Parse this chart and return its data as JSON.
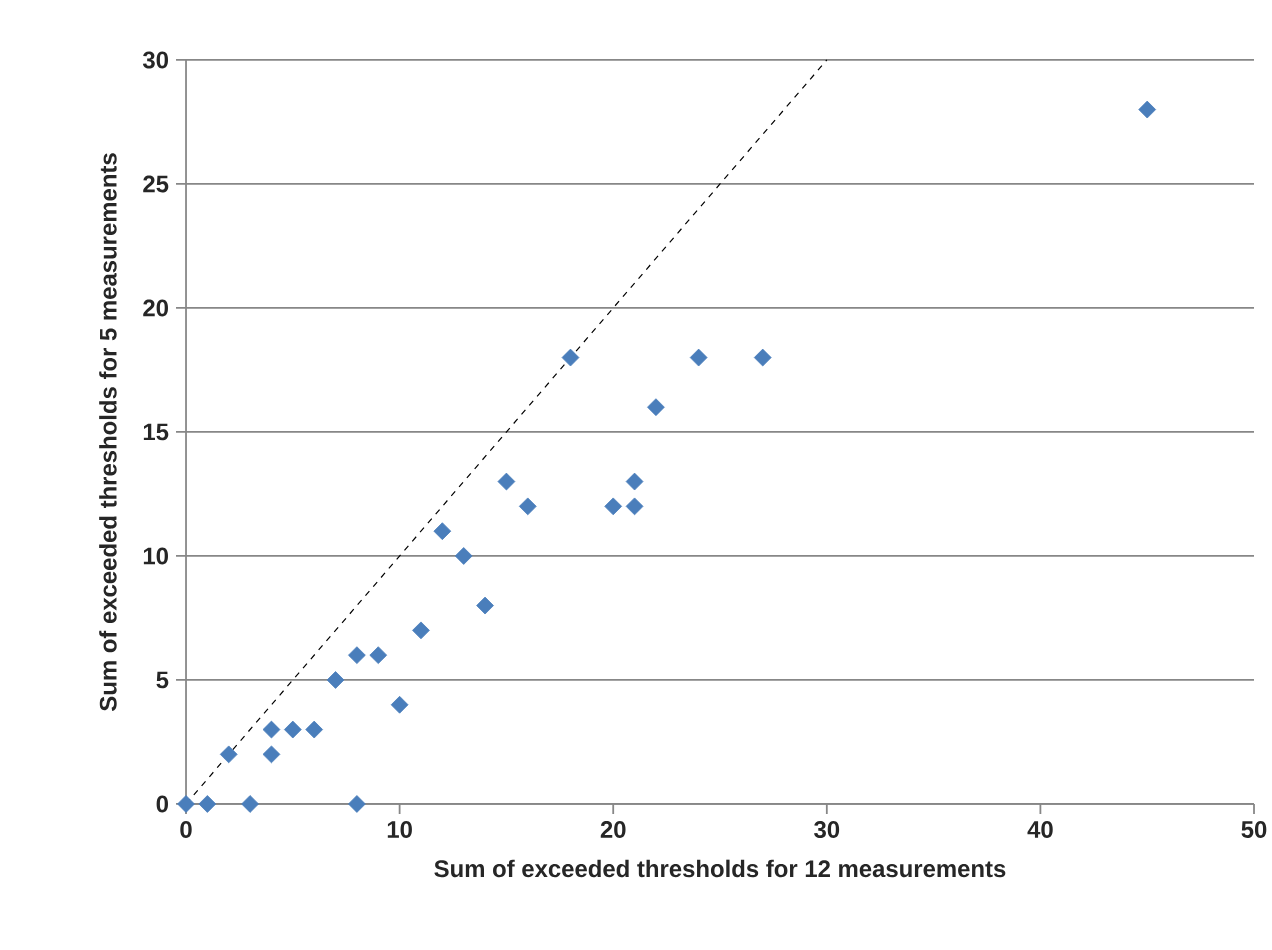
{
  "chart_data": {
    "type": "scatter",
    "xlabel": "Sum of exceeded thresholds for 12 measurements",
    "ylabel": "Sum of exceeded thresholds for 5 measurements",
    "xlim": [
      0,
      50
    ],
    "ylim": [
      0,
      30
    ],
    "xticks": [
      0,
      10,
      20,
      30,
      40,
      50
    ],
    "yticks": [
      0,
      5,
      10,
      15,
      20,
      25,
      30
    ],
    "grid": "y",
    "series": [
      {
        "marker": "diamond",
        "color": "#4a7ebb",
        "x": [
          0,
          1,
          2,
          3,
          4,
          4,
          5,
          6,
          7,
          8,
          8,
          9,
          10,
          11,
          12,
          13,
          14,
          15,
          16,
          18,
          20,
          21,
          21,
          22,
          24,
          27,
          45
        ],
        "values": [
          0,
          0,
          2,
          0,
          3,
          2,
          3,
          3,
          5,
          6,
          0,
          6,
          4,
          7,
          11,
          10,
          8,
          13,
          12,
          18,
          12,
          12,
          13,
          16,
          18,
          18,
          28
        ]
      },
      {
        "type": "line",
        "marker": "none",
        "line_style": "dashed",
        "color": "#000000",
        "x": [
          0,
          30
        ],
        "values": [
          0,
          30
        ]
      }
    ]
  }
}
